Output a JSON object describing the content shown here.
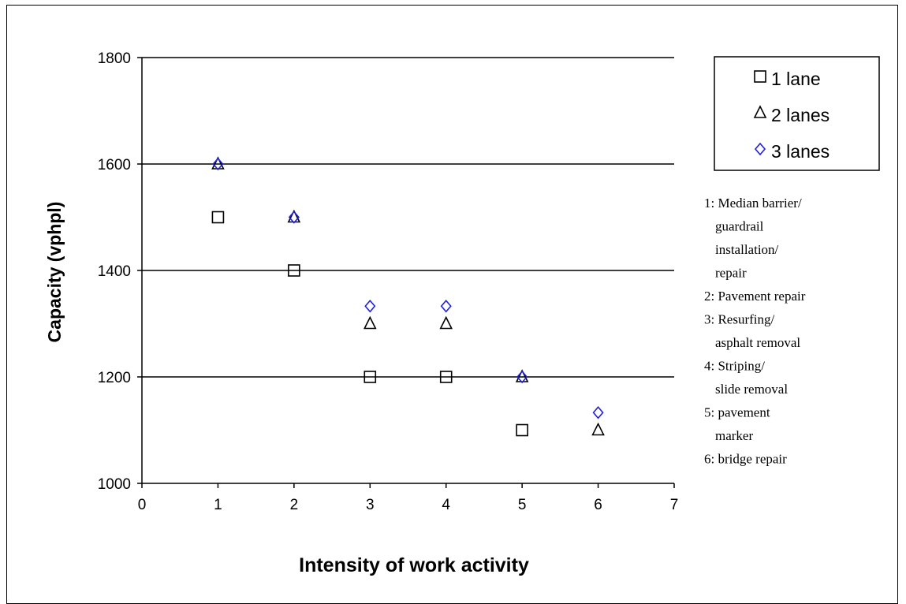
{
  "chart_data": {
    "type": "scatter",
    "title": "",
    "xlabel": "Intensity of work activity",
    "ylabel": "Capacity (vphpl)",
    "xlim": [
      0,
      7
    ],
    "ylim": [
      1000,
      1800
    ],
    "x_ticks": [
      0,
      1,
      2,
      3,
      4,
      5,
      6,
      7
    ],
    "y_ticks": [
      1000,
      1200,
      1400,
      1600,
      1800
    ],
    "grid": "horizontal",
    "legend_position": "top-right",
    "series": [
      {
        "name": "1 lane",
        "marker": "square",
        "color": "#000000",
        "points": [
          [
            1,
            1500
          ],
          [
            2,
            1400
          ],
          [
            3,
            1200
          ],
          [
            4,
            1200
          ],
          [
            5,
            1100
          ]
        ]
      },
      {
        "name": "2 lanes",
        "marker": "triangle",
        "color": "#000000",
        "points": [
          [
            1,
            1600
          ],
          [
            2,
            1500
          ],
          [
            3,
            1300
          ],
          [
            4,
            1300
          ],
          [
            5,
            1200
          ],
          [
            6,
            1100
          ]
        ]
      },
      {
        "name": "3 lanes",
        "marker": "diamond",
        "color": "#2020e0",
        "points": [
          [
            1,
            1600
          ],
          [
            2,
            1500
          ],
          [
            3,
            1333
          ],
          [
            4,
            1333
          ],
          [
            5,
            1200
          ],
          [
            6,
            1133
          ]
        ]
      }
    ],
    "annotations": [
      {
        "key": "1",
        "lines": [
          "1: Median barrier/",
          "guardrail",
          "installation/",
          "repair"
        ]
      },
      {
        "key": "2",
        "lines": [
          "2: Pavement repair"
        ]
      },
      {
        "key": "3",
        "lines": [
          "3: Resurfing/",
          "asphalt removal"
        ]
      },
      {
        "key": "4",
        "lines": [
          "4: Striping/",
          "slide removal"
        ]
      },
      {
        "key": "5",
        "lines": [
          "5: pavement",
          "marker"
        ]
      },
      {
        "key": "6",
        "lines": [
          "6: bridge repair"
        ]
      }
    ]
  }
}
